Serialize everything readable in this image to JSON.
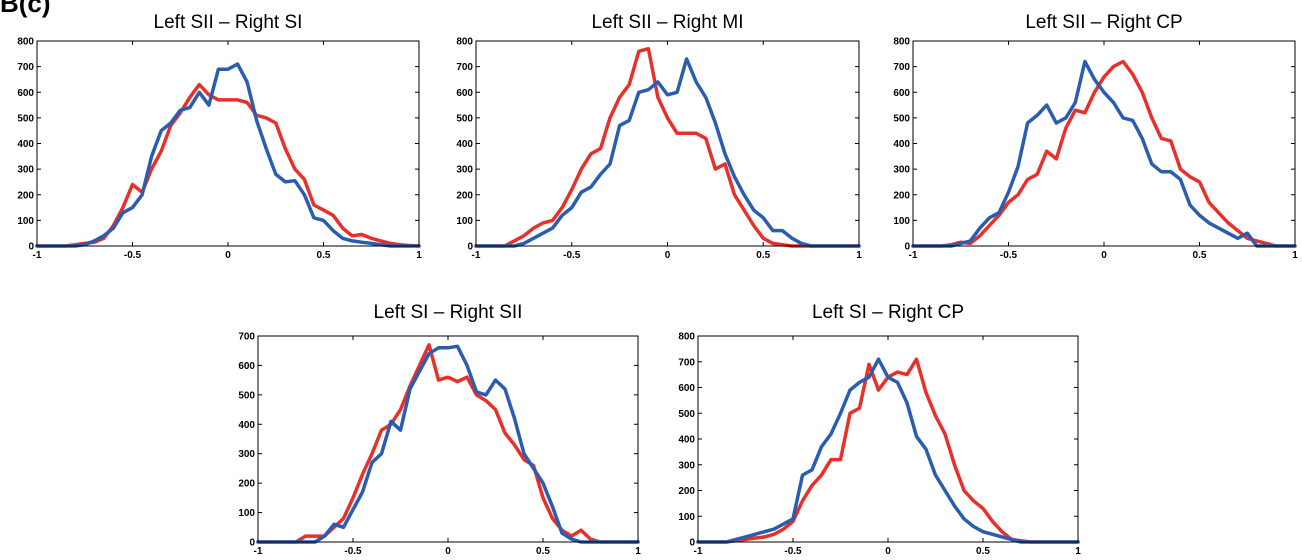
{
  "panel_label": "B(c)",
  "colors": {
    "red": "#e8302b",
    "blue": "#2a5db0",
    "axis": "#000000"
  },
  "chart_data": [
    {
      "type": "line",
      "title": "Left SII – Right SI",
      "xlim": [
        -1,
        1
      ],
      "ylim": [
        0,
        800
      ],
      "xticks": [
        -1,
        -0.5,
        0,
        0.5,
        1
      ],
      "xtick_labels": [
        "-1",
        "-0.5",
        "0",
        "0.5",
        "1"
      ],
      "yticks": [
        0,
        100,
        200,
        300,
        400,
        500,
        600,
        700,
        800
      ],
      "ytick_labels": [
        "0",
        "100",
        "200",
        "300",
        "400",
        "500",
        "600",
        "700",
        "800"
      ],
      "series": [
        {
          "color": "#e8302b",
          "x": [
            -1.0,
            -0.95,
            -0.9,
            -0.85,
            -0.8,
            -0.75,
            -0.7,
            -0.65,
            -0.6,
            -0.55,
            -0.5,
            -0.45,
            -0.4,
            -0.35,
            -0.3,
            -0.25,
            -0.2,
            -0.15,
            -0.1,
            -0.05,
            0.0,
            0.05,
            0.1,
            0.15,
            0.2,
            0.25,
            0.3,
            0.35,
            0.4,
            0.45,
            0.5,
            0.55,
            0.6,
            0.65,
            0.7,
            0.75,
            0.8,
            0.85,
            0.9,
            0.95,
            1.0
          ],
          "y": [
            0,
            0,
            0,
            0,
            5,
            10,
            15,
            30,
            80,
            150,
            240,
            210,
            300,
            370,
            470,
            520,
            580,
            630,
            590,
            570,
            570,
            570,
            560,
            510,
            500,
            480,
            380,
            300,
            260,
            160,
            140,
            120,
            70,
            40,
            45,
            30,
            20,
            10,
            5,
            2,
            0
          ]
        },
        {
          "color": "#2a5db0",
          "x": [
            -1.0,
            -0.95,
            -0.9,
            -0.85,
            -0.8,
            -0.75,
            -0.7,
            -0.65,
            -0.6,
            -0.55,
            -0.5,
            -0.45,
            -0.4,
            -0.35,
            -0.3,
            -0.25,
            -0.2,
            -0.15,
            -0.1,
            -0.05,
            0.0,
            0.05,
            0.1,
            0.15,
            0.2,
            0.25,
            0.3,
            0.35,
            0.4,
            0.45,
            0.5,
            0.55,
            0.6,
            0.65,
            0.7,
            0.75,
            0.8,
            0.85,
            0.9,
            0.95,
            1.0
          ],
          "y": [
            0,
            0,
            0,
            0,
            0,
            5,
            20,
            40,
            70,
            130,
            150,
            200,
            350,
            450,
            480,
            530,
            540,
            600,
            550,
            690,
            690,
            710,
            640,
            490,
            380,
            280,
            250,
            255,
            200,
            110,
            100,
            60,
            30,
            20,
            15,
            10,
            5,
            0,
            0,
            0,
            0
          ]
        }
      ]
    },
    {
      "type": "line",
      "title": "Left SII – Right MI",
      "xlim": [
        -1,
        1
      ],
      "ylim": [
        0,
        800
      ],
      "xticks": [
        -1,
        -0.5,
        0,
        0.5,
        1
      ],
      "xtick_labels": [
        "-1",
        "-0.5",
        "0",
        "0.5",
        "1"
      ],
      "yticks": [
        0,
        100,
        200,
        300,
        400,
        500,
        600,
        700,
        800
      ],
      "ytick_labels": [
        "0",
        "100",
        "200",
        "300",
        "400",
        "500",
        "600",
        "700",
        "800"
      ],
      "series": [
        {
          "color": "#e8302b",
          "x": [
            -1.0,
            -0.95,
            -0.9,
            -0.85,
            -0.8,
            -0.75,
            -0.7,
            -0.65,
            -0.6,
            -0.55,
            -0.5,
            -0.45,
            -0.4,
            -0.35,
            -0.3,
            -0.25,
            -0.2,
            -0.15,
            -0.1,
            -0.05,
            0.0,
            0.05,
            0.1,
            0.15,
            0.2,
            0.25,
            0.3,
            0.35,
            0.4,
            0.45,
            0.5,
            0.55,
            0.6,
            0.65,
            0.7,
            0.75,
            0.8,
            0.85,
            0.9,
            0.95,
            1.0
          ],
          "y": [
            0,
            0,
            0,
            0,
            20,
            40,
            70,
            90,
            100,
            150,
            220,
            300,
            360,
            380,
            500,
            580,
            630,
            760,
            770,
            580,
            500,
            440,
            440,
            440,
            420,
            300,
            320,
            200,
            140,
            80,
            30,
            10,
            5,
            0,
            0,
            0,
            0,
            0,
            0,
            0,
            0
          ]
        },
        {
          "color": "#2a5db0",
          "x": [
            -1.0,
            -0.95,
            -0.9,
            -0.85,
            -0.8,
            -0.75,
            -0.7,
            -0.65,
            -0.6,
            -0.55,
            -0.5,
            -0.45,
            -0.4,
            -0.35,
            -0.3,
            -0.25,
            -0.2,
            -0.15,
            -0.1,
            -0.05,
            0.0,
            0.05,
            0.1,
            0.15,
            0.2,
            0.25,
            0.3,
            0.35,
            0.4,
            0.45,
            0.5,
            0.55,
            0.6,
            0.65,
            0.7,
            0.75,
            0.8,
            0.85,
            0.9,
            0.95,
            1.0
          ],
          "y": [
            0,
            0,
            0,
            0,
            0,
            10,
            30,
            50,
            70,
            120,
            150,
            210,
            230,
            280,
            320,
            470,
            490,
            600,
            610,
            640,
            590,
            600,
            730,
            640,
            580,
            480,
            360,
            270,
            200,
            140,
            110,
            60,
            60,
            30,
            10,
            0,
            0,
            0,
            0,
            0,
            0
          ]
        }
      ]
    },
    {
      "type": "line",
      "title": "Left SII – Right CP",
      "xlim": [
        -1,
        1
      ],
      "ylim": [
        0,
        800
      ],
      "xticks": [
        -1,
        -0.5,
        0,
        0.5,
        1
      ],
      "xtick_labels": [
        "-1",
        "-0.5",
        "0",
        "0.5",
        "1"
      ],
      "yticks": [
        0,
        100,
        200,
        300,
        400,
        500,
        600,
        700,
        800
      ],
      "ytick_labels": [
        "0",
        "100",
        "200",
        "300",
        "400",
        "500",
        "600",
        "700",
        "800"
      ],
      "series": [
        {
          "color": "#e8302b",
          "x": [
            -1.0,
            -0.95,
            -0.9,
            -0.85,
            -0.8,
            -0.75,
            -0.7,
            -0.65,
            -0.6,
            -0.55,
            -0.5,
            -0.45,
            -0.4,
            -0.35,
            -0.3,
            -0.25,
            -0.2,
            -0.15,
            -0.1,
            -0.05,
            0.0,
            0.05,
            0.1,
            0.15,
            0.2,
            0.25,
            0.3,
            0.35,
            0.4,
            0.45,
            0.5,
            0.55,
            0.6,
            0.65,
            0.7,
            0.75,
            0.8,
            0.85,
            0.9,
            0.95,
            1.0
          ],
          "y": [
            0,
            0,
            0,
            0,
            5,
            15,
            10,
            40,
            80,
            120,
            170,
            200,
            260,
            280,
            370,
            340,
            460,
            530,
            520,
            600,
            660,
            700,
            720,
            670,
            600,
            500,
            420,
            410,
            300,
            270,
            250,
            170,
            130,
            90,
            60,
            30,
            20,
            10,
            0,
            0,
            0
          ]
        },
        {
          "color": "#2a5db0",
          "x": [
            -1.0,
            -0.95,
            -0.9,
            -0.85,
            -0.8,
            -0.75,
            -0.7,
            -0.65,
            -0.6,
            -0.55,
            -0.5,
            -0.45,
            -0.4,
            -0.35,
            -0.3,
            -0.25,
            -0.2,
            -0.15,
            -0.1,
            -0.05,
            0.0,
            0.05,
            0.1,
            0.15,
            0.2,
            0.25,
            0.3,
            0.35,
            0.4,
            0.45,
            0.5,
            0.55,
            0.6,
            0.65,
            0.7,
            0.75,
            0.8,
            0.85,
            0.9,
            0.95,
            1.0
          ],
          "y": [
            0,
            0,
            0,
            0,
            0,
            10,
            20,
            70,
            110,
            130,
            210,
            310,
            480,
            510,
            550,
            480,
            500,
            560,
            720,
            650,
            600,
            560,
            500,
            490,
            420,
            320,
            290,
            290,
            260,
            160,
            120,
            90,
            70,
            50,
            30,
            50,
            0,
            0,
            0,
            0,
            0
          ]
        }
      ]
    },
    {
      "type": "line",
      "title": "Left SI – Right SII",
      "xlim": [
        -1,
        1
      ],
      "ylim": [
        0,
        700
      ],
      "xticks": [
        -1,
        -0.5,
        0,
        0.5,
        1
      ],
      "xtick_labels": [
        "-1",
        "-0.5",
        "0",
        "0.5",
        "1"
      ],
      "yticks": [
        0,
        100,
        200,
        300,
        400,
        500,
        600,
        700
      ],
      "ytick_labels": [
        "0",
        "100",
        "200",
        "300",
        "400",
        "500",
        "600",
        "700"
      ],
      "series": [
        {
          "color": "#e8302b",
          "x": [
            -1.0,
            -0.95,
            -0.9,
            -0.85,
            -0.8,
            -0.75,
            -0.7,
            -0.65,
            -0.6,
            -0.55,
            -0.5,
            -0.45,
            -0.4,
            -0.35,
            -0.3,
            -0.25,
            -0.2,
            -0.15,
            -0.1,
            -0.05,
            0.0,
            0.05,
            0.1,
            0.15,
            0.2,
            0.25,
            0.3,
            0.35,
            0.4,
            0.45,
            0.5,
            0.55,
            0.6,
            0.65,
            0.7,
            0.75,
            0.8,
            0.85,
            0.9,
            0.95,
            1.0
          ],
          "y": [
            0,
            0,
            0,
            0,
            0,
            20,
            20,
            20,
            50,
            80,
            150,
            230,
            300,
            380,
            400,
            450,
            530,
            600,
            670,
            550,
            560,
            545,
            560,
            500,
            480,
            450,
            370,
            330,
            280,
            260,
            150,
            80,
            40,
            20,
            40,
            10,
            0,
            0,
            0,
            0,
            0
          ]
        },
        {
          "color": "#2a5db0",
          "x": [
            -1.0,
            -0.95,
            -0.9,
            -0.85,
            -0.8,
            -0.75,
            -0.7,
            -0.65,
            -0.6,
            -0.55,
            -0.5,
            -0.45,
            -0.4,
            -0.35,
            -0.3,
            -0.25,
            -0.2,
            -0.15,
            -0.1,
            -0.05,
            0.0,
            0.05,
            0.1,
            0.15,
            0.2,
            0.25,
            0.3,
            0.35,
            0.4,
            0.45,
            0.5,
            0.55,
            0.6,
            0.65,
            0.7,
            0.75,
            0.8,
            0.85,
            0.9,
            0.95,
            1.0
          ],
          "y": [
            0,
            0,
            0,
            0,
            0,
            0,
            0,
            20,
            60,
            50,
            110,
            170,
            270,
            300,
            410,
            380,
            520,
            580,
            640,
            660,
            660,
            665,
            600,
            510,
            500,
            550,
            520,
            420,
            300,
            250,
            200,
            120,
            30,
            10,
            0,
            0,
            0,
            0,
            0,
            0,
            0
          ]
        }
      ]
    },
    {
      "type": "line",
      "title": "Left SI – Right CP",
      "xlim": [
        -1,
        1
      ],
      "ylim": [
        0,
        800
      ],
      "xticks": [
        -1,
        -0.5,
        0,
        0.5,
        1
      ],
      "xtick_labels": [
        "-1",
        "-0.5",
        "0",
        "0.5",
        "1"
      ],
      "yticks": [
        0,
        100,
        200,
        300,
        400,
        500,
        600,
        700,
        800
      ],
      "ytick_labels": [
        "0",
        "100",
        "200",
        "300",
        "400",
        "500",
        "600",
        "700",
        "800"
      ],
      "series": [
        {
          "color": "#e8302b",
          "x": [
            -1.0,
            -0.95,
            -0.9,
            -0.85,
            -0.8,
            -0.75,
            -0.7,
            -0.65,
            -0.6,
            -0.55,
            -0.5,
            -0.45,
            -0.4,
            -0.35,
            -0.3,
            -0.25,
            -0.2,
            -0.15,
            -0.1,
            -0.05,
            0.0,
            0.05,
            0.1,
            0.15,
            0.2,
            0.25,
            0.3,
            0.35,
            0.4,
            0.45,
            0.5,
            0.55,
            0.6,
            0.65,
            0.7,
            0.75,
            0.8,
            0.85,
            0.9,
            0.95,
            1.0
          ],
          "y": [
            0,
            0,
            0,
            0,
            5,
            10,
            15,
            20,
            30,
            50,
            80,
            160,
            220,
            260,
            320,
            320,
            500,
            520,
            690,
            590,
            640,
            660,
            650,
            710,
            580,
            490,
            420,
            300,
            200,
            160,
            130,
            80,
            40,
            10,
            5,
            0,
            0,
            0,
            0,
            0,
            0
          ]
        },
        {
          "color": "#2a5db0",
          "x": [
            -1.0,
            -0.95,
            -0.9,
            -0.85,
            -0.8,
            -0.75,
            -0.7,
            -0.65,
            -0.6,
            -0.55,
            -0.5,
            -0.45,
            -0.4,
            -0.35,
            -0.3,
            -0.25,
            -0.2,
            -0.15,
            -0.1,
            -0.05,
            0.0,
            0.05,
            0.1,
            0.15,
            0.2,
            0.25,
            0.3,
            0.35,
            0.4,
            0.45,
            0.5,
            0.55,
            0.6,
            0.65,
            0.7,
            0.75,
            0.8,
            0.85,
            0.9,
            0.95,
            1.0
          ],
          "y": [
            0,
            0,
            0,
            0,
            10,
            20,
            30,
            40,
            50,
            70,
            90,
            260,
            280,
            370,
            420,
            500,
            590,
            620,
            640,
            710,
            640,
            620,
            540,
            410,
            360,
            260,
            200,
            140,
            90,
            60,
            40,
            30,
            20,
            10,
            0,
            0,
            0,
            0,
            0,
            0,
            0
          ]
        }
      ]
    }
  ]
}
